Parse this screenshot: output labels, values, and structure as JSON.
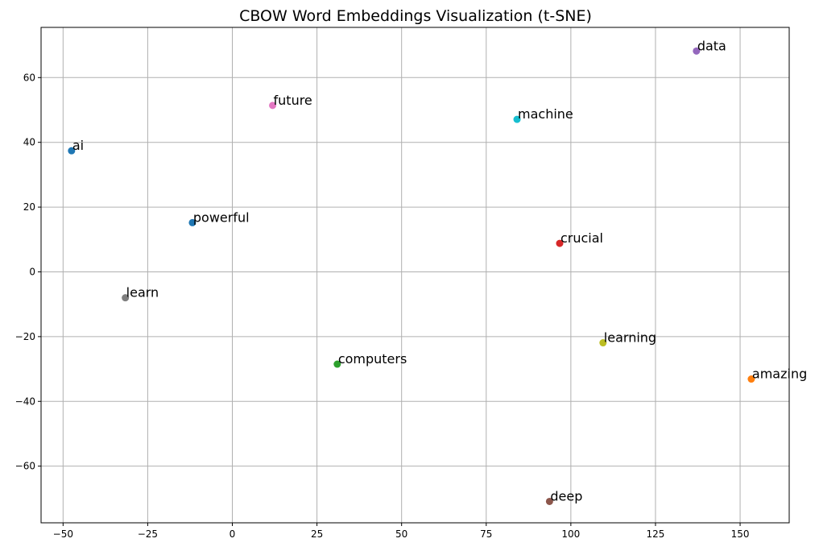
{
  "chart_data": {
    "type": "scatter",
    "title": "CBOW Word Embeddings Visualization (t-SNE)",
    "xlabel": "",
    "ylabel": "",
    "xlim": [
      -56.5,
      164.5
    ],
    "ylim": [
      -77.5,
      75.5
    ],
    "xticks": [
      -50,
      -25,
      0,
      25,
      50,
      75,
      100,
      125,
      150
    ],
    "yticks": [
      -60,
      -40,
      -20,
      0,
      20,
      40,
      60
    ],
    "xtick_labels": [
      "−50",
      "−25",
      "0",
      "25",
      "50",
      "75",
      "100",
      "125",
      "150"
    ],
    "ytick_labels": [
      "−60",
      "−40",
      "−20",
      "0",
      "20",
      "40",
      "60"
    ],
    "grid": true,
    "points": [
      {
        "label": "ai",
        "x": -47.5,
        "y": 37.4,
        "color": "#1f77b4"
      },
      {
        "label": "amazing",
        "x": 153.3,
        "y": -33.1,
        "color": "#ff7f0e"
      },
      {
        "label": "computers",
        "x": 31.0,
        "y": -28.5,
        "color": "#2ca02c"
      },
      {
        "label": "crucial",
        "x": 96.7,
        "y": 8.8,
        "color": "#d62728"
      },
      {
        "label": "data",
        "x": 137.1,
        "y": 68.2,
        "color": "#9467bd"
      },
      {
        "label": "deep",
        "x": 93.7,
        "y": -70.9,
        "color": "#8c564b"
      },
      {
        "label": "future",
        "x": 11.9,
        "y": 51.4,
        "color": "#e377c2"
      },
      {
        "label": "learn",
        "x": -31.6,
        "y": -8.0,
        "color": "#7f7f7f"
      },
      {
        "label": "learning",
        "x": 109.5,
        "y": -21.9,
        "color": "#bcbd22"
      },
      {
        "label": "machine",
        "x": 84.1,
        "y": 47.1,
        "color": "#17becf"
      },
      {
        "label": "powerful",
        "x": -11.8,
        "y": 15.2,
        "color": "#1f77b4"
      }
    ]
  }
}
